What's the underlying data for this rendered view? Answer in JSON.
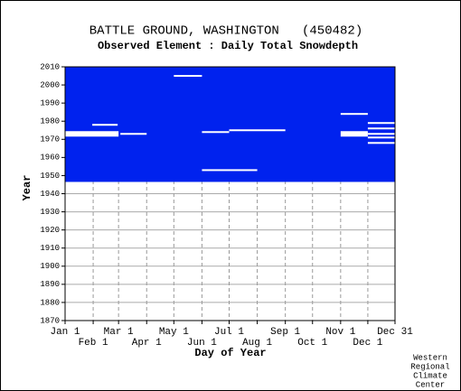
{
  "chart_data": {
    "type": "availability",
    "title": "BATTLE GROUND, WASHINGTON   (450482)",
    "subtitle": "Observed Element : Daily Total Snowdepth",
    "x_label": "Day of Year",
    "y_label": "Year",
    "credit": [
      "Western",
      "Regional",
      "Climate",
      "Center"
    ],
    "xlim": [
      1,
      365
    ],
    "ylim": [
      1870,
      2010
    ],
    "xticks": [
      {
        "value": 1,
        "label": "Jan 1"
      },
      {
        "value": 32,
        "label": "Feb 1"
      },
      {
        "value": 60,
        "label": "Mar 1"
      },
      {
        "value": 91,
        "label": "Apr 1"
      },
      {
        "value": 121,
        "label": "May 1"
      },
      {
        "value": 152,
        "label": "Jun 1"
      },
      {
        "value": 182,
        "label": "Jul 1"
      },
      {
        "value": 213,
        "label": "Aug 1"
      },
      {
        "value": 244,
        "label": "Sep 1"
      },
      {
        "value": 274,
        "label": "Oct 1"
      },
      {
        "value": 305,
        "label": "Nov 1"
      },
      {
        "value": 335,
        "label": "Dec 1"
      },
      {
        "value": 365,
        "label": "Dec 31"
      }
    ],
    "yticks": [
      1870,
      1880,
      1890,
      1900,
      1910,
      1920,
      1930,
      1940,
      1950,
      1960,
      1970,
      1980,
      1990,
      2000,
      2010
    ],
    "grid": true,
    "color": "#0022ee",
    "period": [
      1947,
      2010
    ],
    "gaps": [
      {
        "years": [
          1972,
          1974
        ],
        "days": [
          1,
          60
        ]
      },
      {
        "years": [
          1978,
          1978
        ],
        "days": [
          31,
          59
        ]
      },
      {
        "years": [
          1973,
          1973
        ],
        "days": [
          62,
          91
        ]
      },
      {
        "years": [
          2005,
          2005
        ],
        "days": [
          121,
          152
        ]
      },
      {
        "years": [
          1974,
          1974
        ],
        "days": [
          152,
          182
        ]
      },
      {
        "years": [
          1975,
          1975
        ],
        "days": [
          182,
          244
        ]
      },
      {
        "years": [
          1953,
          1953
        ],
        "days": [
          152,
          213
        ]
      },
      {
        "years": [
          1984,
          1984
        ],
        "days": [
          305,
          335
        ]
      },
      {
        "years": [
          1972,
          1974
        ],
        "days": [
          305,
          335
        ]
      },
      {
        "years": [
          1979,
          1979
        ],
        "days": [
          335,
          365
        ]
      },
      {
        "years": [
          1976,
          1976
        ],
        "days": [
          335,
          365
        ]
      },
      {
        "years": [
          1973,
          1973
        ],
        "days": [
          335,
          365
        ]
      },
      {
        "years": [
          1971,
          1971
        ],
        "days": [
          335,
          365
        ]
      },
      {
        "years": [
          1968,
          1968
        ],
        "days": [
          335,
          365
        ]
      }
    ]
  }
}
